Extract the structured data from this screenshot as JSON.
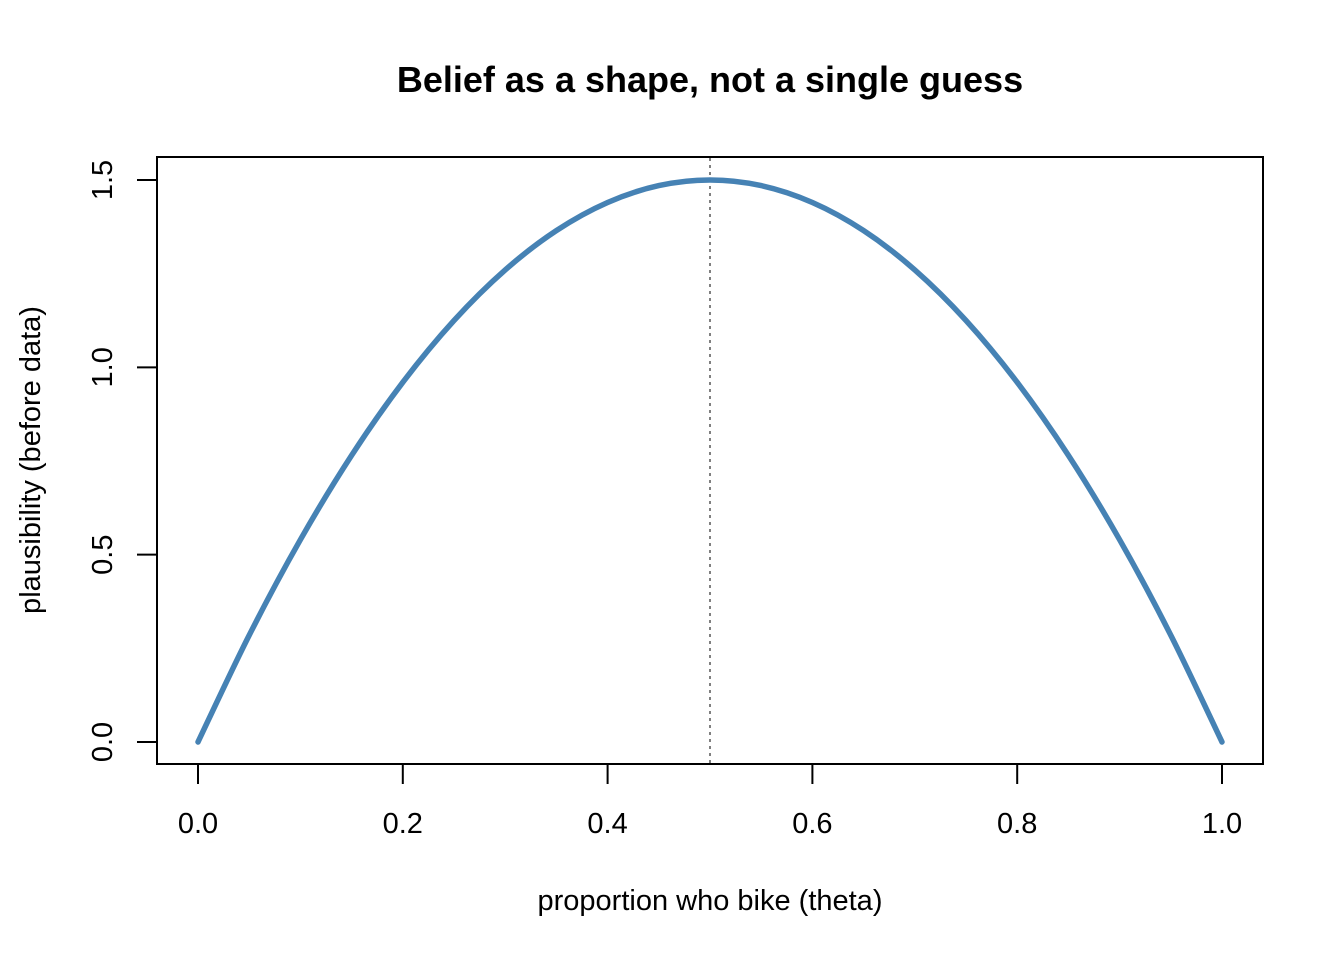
{
  "chart_data": {
    "type": "line",
    "title": "Belief as a shape, not a single guess",
    "xlabel": "proportion who bike (theta)",
    "ylabel": "plausibility (before data)",
    "xlim": [
      0,
      1
    ],
    "ylim": [
      0,
      1.5
    ],
    "x_ticks": [
      0.0,
      0.2,
      0.4,
      0.6,
      0.8,
      1.0
    ],
    "x_tick_labels": [
      "0.0",
      "0.2",
      "0.4",
      "0.6",
      "0.8",
      "1.0"
    ],
    "y_ticks": [
      0.0,
      0.5,
      1.0,
      1.5
    ],
    "y_tick_labels": [
      "0.0",
      "0.5",
      "1.0",
      "1.5"
    ],
    "grid": false,
    "series": [
      {
        "x": [
          0.0,
          0.05,
          0.1,
          0.15,
          0.2,
          0.25,
          0.3,
          0.35,
          0.4,
          0.45,
          0.5,
          0.55,
          0.6,
          0.65,
          0.7,
          0.75,
          0.8,
          0.85,
          0.9,
          0.95,
          1.0
        ],
        "y": [
          0.0,
          0.285,
          0.54,
          0.765,
          0.96,
          1.125,
          1.26,
          1.365,
          1.44,
          1.485,
          1.5,
          1.485,
          1.44,
          1.365,
          1.26,
          1.125,
          0.96,
          0.765,
          0.54,
          0.285,
          0.0
        ],
        "color": "#4682B4"
      }
    ],
    "reference_line": {
      "orientation": "vertical",
      "x": 0.5,
      "style": "dotted",
      "color": "#808080"
    }
  }
}
